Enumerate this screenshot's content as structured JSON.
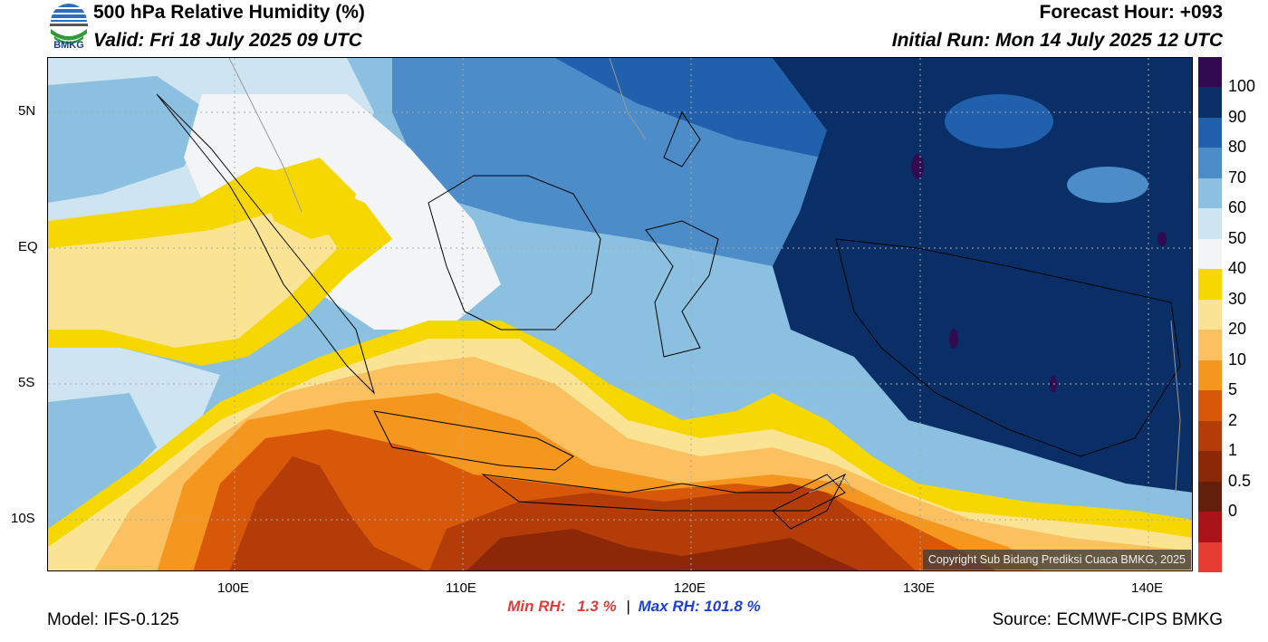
{
  "header": {
    "title": "500 hPa Relative Humidity (%)",
    "valid": "Valid: Fri 18 July 2025 09 UTC",
    "forecast_hour": "Forecast Hour: +093",
    "initial_run": "Initial Run: Mon 14 July 2025 12 UTC",
    "logo_text": "BMKG"
  },
  "map": {
    "lat_labels": [
      "5N",
      "EQ",
      "5S",
      "10S"
    ],
    "lon_labels": [
      "100E",
      "110E",
      "120E",
      "130E",
      "140E"
    ],
    "copyright": "Copyright Sub Bidang Prediksi Cuaca BMKG, 2025"
  },
  "colorbar": {
    "labels": [
      "100",
      "90",
      "80",
      "70",
      "60",
      "50",
      "40",
      "30",
      "20",
      "10",
      "5",
      "2",
      "1",
      "0.5",
      "0"
    ],
    "colors": [
      "#320a50",
      "#0a2f66",
      "#2060ac",
      "#4c8cc8",
      "#8cc0e0",
      "#cfe4f1",
      "#f2f4f6",
      "#f6d800",
      "#fbe394",
      "#fbc060",
      "#f5961e",
      "#d8580a",
      "#b33c08",
      "#8c2808",
      "#62200c",
      "#aa1418",
      "#e63c32"
    ]
  },
  "footer": {
    "model": "Model: IFS-0.125",
    "min_label": "Min RH:",
    "min_value": "1.3 %",
    "separator": "|",
    "max_label": "Max RH:",
    "max_value": "101.8 %",
    "source": "Source: ECMWF-CIPS BMKG"
  }
}
